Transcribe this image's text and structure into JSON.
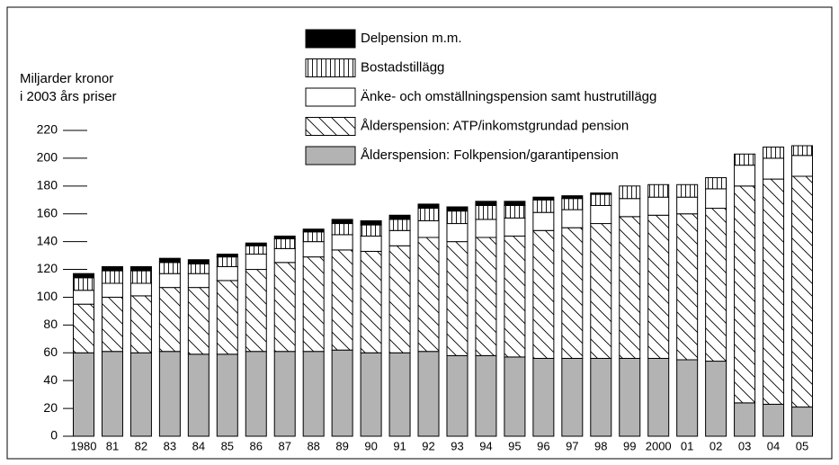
{
  "chart_data": {
    "type": "stacked_bar",
    "ylabel": [
      "Miljarder kronor",
      "i 2003 års priser"
    ],
    "categories": [
      "1980",
      "81",
      "82",
      "83",
      "84",
      "85",
      "86",
      "87",
      "88",
      "89",
      "90",
      "91",
      "92",
      "93",
      "94",
      "95",
      "96",
      "97",
      "98",
      "99",
      "2000",
      "01",
      "02",
      "03",
      "04",
      "05"
    ],
    "series": [
      {
        "name": "Ålderspension: Folkpension/garantipension",
        "color": "#b3b3b3",
        "hatch": "none",
        "values": [
          60,
          61,
          60,
          61,
          59,
          59,
          61,
          61,
          61,
          62,
          60,
          60,
          61,
          58,
          58,
          57,
          56,
          56,
          56,
          56,
          56,
          55,
          54,
          24,
          23,
          21
        ]
      },
      {
        "name": "Ålderspension: ATP/inkomstgrundad pension",
        "color": "#ffffff",
        "hatch": "diagonal",
        "values": [
          35,
          39,
          41,
          46,
          48,
          53,
          59,
          64,
          68,
          72,
          73,
          77,
          82,
          82,
          85,
          87,
          92,
          94,
          97,
          102,
          103,
          105,
          110,
          156,
          162,
          166
        ]
      },
      {
        "name": "Änke- och omställningspension samt hustrutillägg",
        "color": "#ffffff",
        "hatch": "none",
        "values": [
          10,
          10,
          9,
          10,
          10,
          10,
          11,
          10,
          11,
          11,
          11,
          11,
          12,
          13,
          13,
          13,
          13,
          13,
          13,
          13,
          13,
          12,
          14,
          15,
          15,
          15
        ]
      },
      {
        "name": "Bostadstillägg",
        "color": "#ffffff",
        "hatch": "vertical",
        "values": [
          9,
          9,
          9,
          8,
          7,
          7,
          6,
          7,
          7,
          8,
          8,
          8,
          9,
          9,
          10,
          9,
          9,
          8,
          8,
          9,
          9,
          9,
          8,
          8,
          8,
          7
        ]
      },
      {
        "name": "Delpension m.m.",
        "color": "#000000",
        "hatch": "none",
        "values": [
          3,
          3,
          3,
          3,
          3,
          2,
          2,
          2,
          2,
          3,
          3,
          3,
          3,
          3,
          3,
          3,
          2,
          2,
          1,
          0,
          0,
          0,
          0,
          0,
          0,
          0
        ]
      }
    ],
    "ylim": [
      0,
      220
    ],
    "yticks": [
      0,
      20,
      40,
      60,
      80,
      100,
      120,
      140,
      160,
      180,
      200,
      220
    ]
  }
}
